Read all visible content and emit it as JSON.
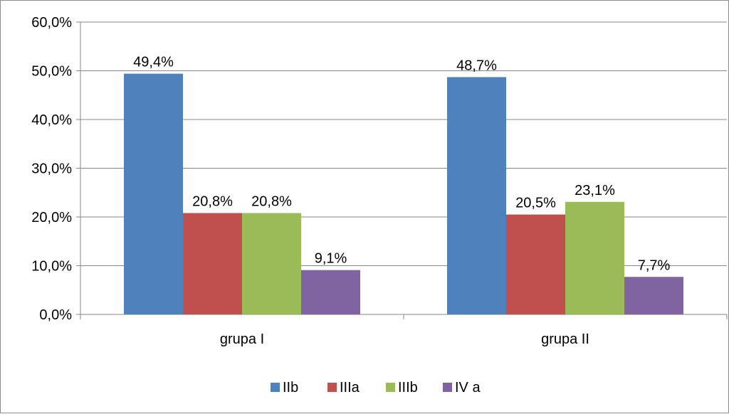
{
  "chart_data": {
    "type": "bar",
    "categories": [
      "grupa I",
      "grupa II"
    ],
    "series": [
      {
        "name": "IIb",
        "values": [
          49.4,
          48.7
        ],
        "labels": [
          "49,4%",
          "48,7%"
        ],
        "color": "#4f81bd"
      },
      {
        "name": "IIIa",
        "values": [
          20.8,
          20.5
        ],
        "labels": [
          "20,8%",
          "20,5%"
        ],
        "color": "#c0504d"
      },
      {
        "name": "IIIb",
        "values": [
          20.8,
          23.1
        ],
        "labels": [
          "20,8%",
          "23,1%"
        ],
        "color": "#9bbb59"
      },
      {
        "name": "IV a",
        "values": [
          9.1,
          7.7
        ],
        "labels": [
          "9,1%",
          "7,7%"
        ],
        "color": "#8064a2"
      }
    ],
    "y_ticks": [
      0,
      10,
      20,
      30,
      40,
      50,
      60
    ],
    "y_tick_labels": [
      "0,0%",
      "10,0%",
      "20,0%",
      "30,0%",
      "40,0%",
      "50,0%",
      "60,0%"
    ],
    "ylim": [
      0,
      60
    ],
    "grid": true,
    "legend": "bottom",
    "title": "",
    "xlabel": "",
    "ylabel": ""
  }
}
